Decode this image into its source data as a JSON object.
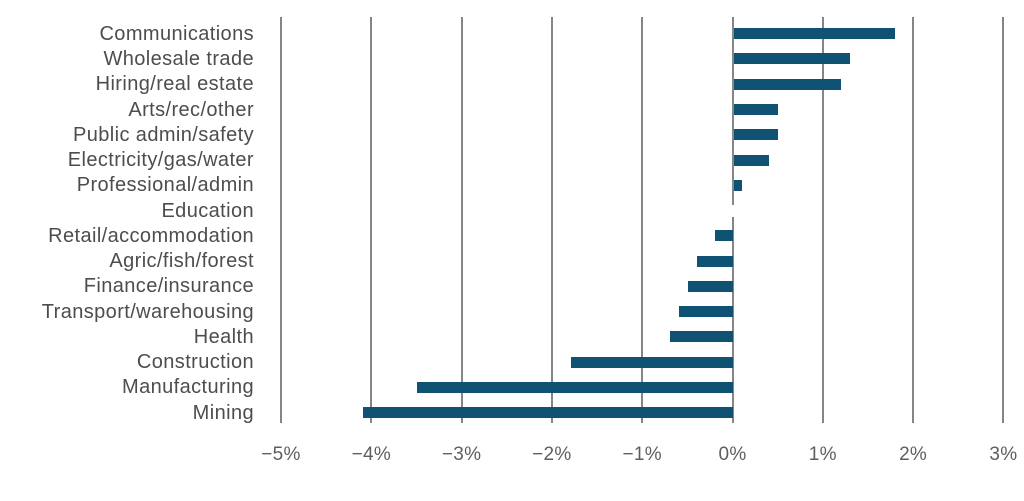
{
  "chart_data": {
    "type": "bar",
    "orientation": "horizontal",
    "title": "",
    "subtitle": "",
    "xlabel": "",
    "ylabel": "",
    "unit": "%",
    "categories": [
      "Communications",
      "Wholesale trade",
      "Hiring/real estate",
      "Arts/rec/other",
      "Public admin/safety",
      "Electricity/gas/water",
      "Professional/admin",
      "Education",
      "Retail/accommodation",
      "Agric/fish/forest",
      "Finance/insurance",
      "Transport/warehousing",
      "Health",
      "Construction",
      "Manufacturing",
      "Mining"
    ],
    "values": [
      1.8,
      1.3,
      1.2,
      0.5,
      0.5,
      0.4,
      0.1,
      0.0,
      -0.2,
      -0.4,
      -0.5,
      -0.6,
      -0.7,
      -1.8,
      -3.5,
      -4.1
    ],
    "xlim": [
      -5,
      3
    ],
    "x_tick_values": [
      -5,
      -4,
      -3,
      -2,
      -1,
      0,
      1,
      2,
      3
    ],
    "x_tick_labels": [
      "−5%",
      "−4%",
      "−3%",
      "−2%",
      "−1%",
      "0%",
      "1%",
      "2%",
      "3%"
    ],
    "grid": "vertical solid gridlines at every 1%, drawn behind bars",
    "legend": "none",
    "colors": {
      "bar": "#0f5274",
      "gridline": "#868686",
      "category_label": "#4d4d4d",
      "tick_label": "#5e5e5e",
      "background": "#ffffff"
    }
  }
}
